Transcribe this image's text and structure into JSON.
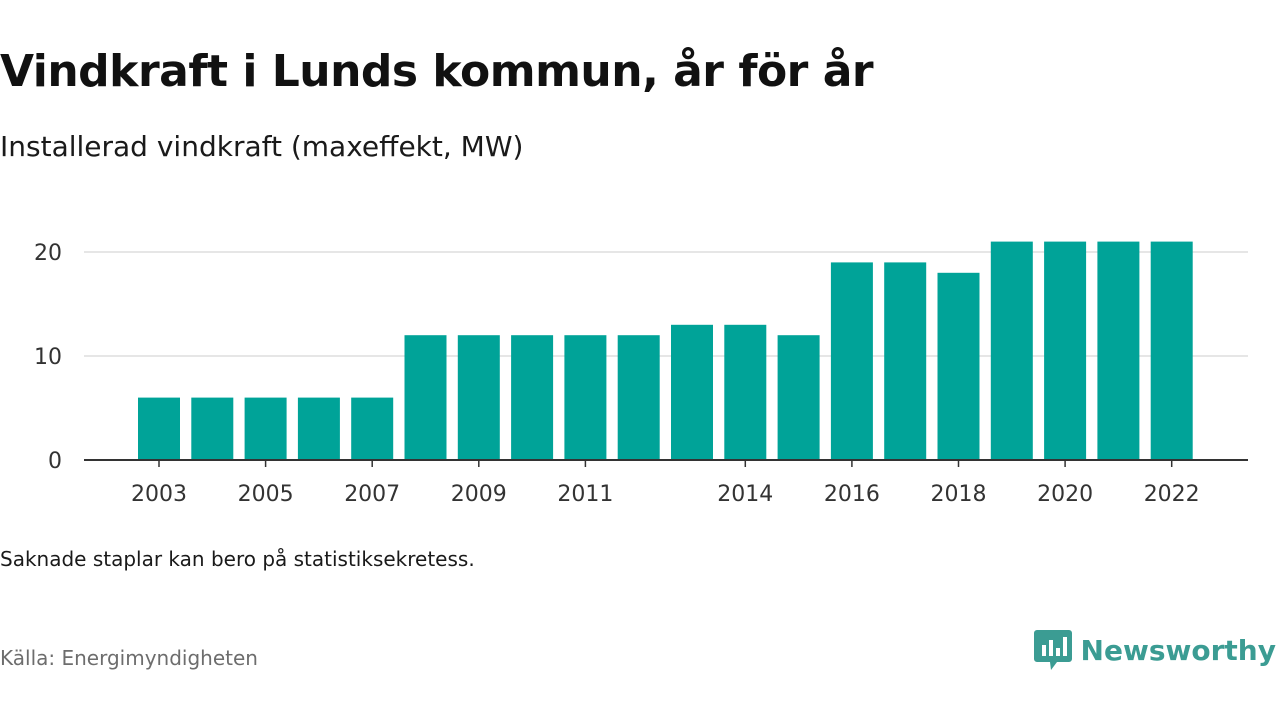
{
  "header": {
    "title": "Vindkraft i Lunds kommun, år för år",
    "subtitle": "Installerad vindkraft (maxeffekt, MW)"
  },
  "footer": {
    "note": "Saknade staplar kan bero på statistiksekretess.",
    "source": "Källa: Energimyndigheten",
    "brand": "Newsworthy"
  },
  "colors": {
    "bar": "#00a398",
    "grid": "#dddddd",
    "axis": "#333333",
    "brand": "#3b9c93"
  },
  "chart_data": {
    "type": "bar",
    "title": "Vindkraft i Lunds kommun, år för år",
    "subtitle": "Installerad vindkraft (maxeffekt, MW)",
    "categories": [
      "2003",
      "2004",
      "2005",
      "2006",
      "2007",
      "2008",
      "2009",
      "2010",
      "2011",
      "2012",
      "2013",
      "2014",
      "2015",
      "2016",
      "2017",
      "2018",
      "2019",
      "2020",
      "2021",
      "2022"
    ],
    "values": [
      6,
      6,
      6,
      6,
      6,
      12,
      12,
      12,
      12,
      12,
      13,
      13,
      12,
      19,
      19,
      18,
      21,
      21,
      21,
      21
    ],
    "x_tick_labels": [
      "2003",
      "2005",
      "2007",
      "2009",
      "2011",
      "2014",
      "2016",
      "2018",
      "2020",
      "2022"
    ],
    "y_ticks": [
      0,
      10,
      20
    ],
    "ylim": [
      0,
      22
    ],
    "grid": true,
    "legend": "none"
  }
}
